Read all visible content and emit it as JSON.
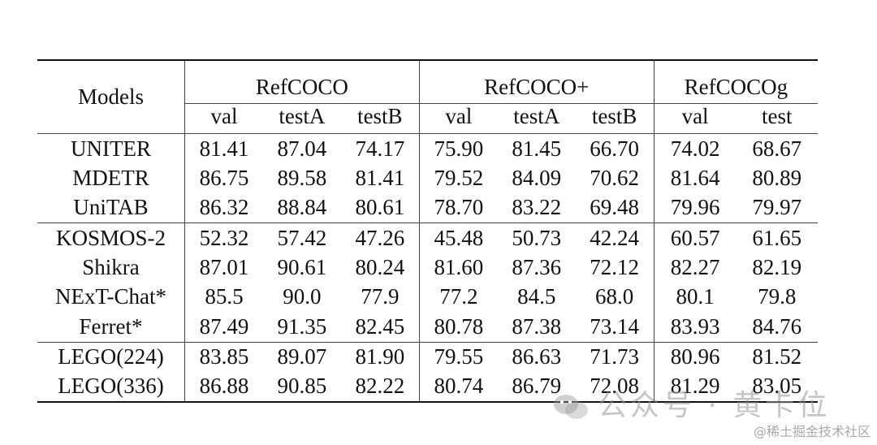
{
  "table": {
    "models_header": "Models",
    "groups": [
      "RefCOCO",
      "RefCOCO+",
      "RefCOCOg"
    ],
    "subheaders": [
      "val",
      "testA",
      "testB",
      "val",
      "testA",
      "testB",
      "val",
      "test"
    ],
    "sections": [
      [
        {
          "model": "UNITER",
          "values": [
            "81.41",
            "87.04",
            "74.17",
            "75.90",
            "81.45",
            "66.70",
            "74.02",
            "68.67"
          ]
        },
        {
          "model": "MDETR",
          "values": [
            "86.75",
            "89.58",
            "81.41",
            "79.52",
            "84.09",
            "70.62",
            "81.64",
            "80.89"
          ]
        },
        {
          "model": "UniTAB",
          "values": [
            "86.32",
            "88.84",
            "80.61",
            "78.70",
            "83.22",
            "69.48",
            "79.96",
            "79.97"
          ]
        }
      ],
      [
        {
          "model": "KOSMOS-2",
          "values": [
            "52.32",
            "57.42",
            "47.26",
            "45.48",
            "50.73",
            "42.24",
            "60.57",
            "61.65"
          ]
        },
        {
          "model": "Shikra",
          "values": [
            "87.01",
            "90.61",
            "80.24",
            "81.60",
            "87.36",
            "72.12",
            "82.27",
            "82.19"
          ]
        },
        {
          "model": "NExT-Chat*",
          "values": [
            "85.5",
            "90.0",
            "77.9",
            "77.2",
            "84.5",
            "68.0",
            "80.1",
            "79.8"
          ]
        },
        {
          "model": "Ferret*",
          "values": [
            "87.49",
            "91.35",
            "82.45",
            "80.78",
            "87.38",
            "73.14",
            "83.93",
            "84.76"
          ]
        }
      ],
      [
        {
          "model": "LEGO(224)",
          "values": [
            "83.85",
            "89.07",
            "81.90",
            "79.55",
            "86.63",
            "71.73",
            "80.96",
            "81.52"
          ]
        },
        {
          "model": "LEGO(336)",
          "values": [
            "86.88",
            "90.85",
            "82.22",
            "80.74",
            "86.79",
            "72.08",
            "81.29",
            "83.05"
          ]
        }
      ]
    ]
  },
  "watermark": {
    "main": "公众号 · 黄卡位",
    "site": "@稀土掘金技术社区",
    "icon": "wechat-icon"
  }
}
